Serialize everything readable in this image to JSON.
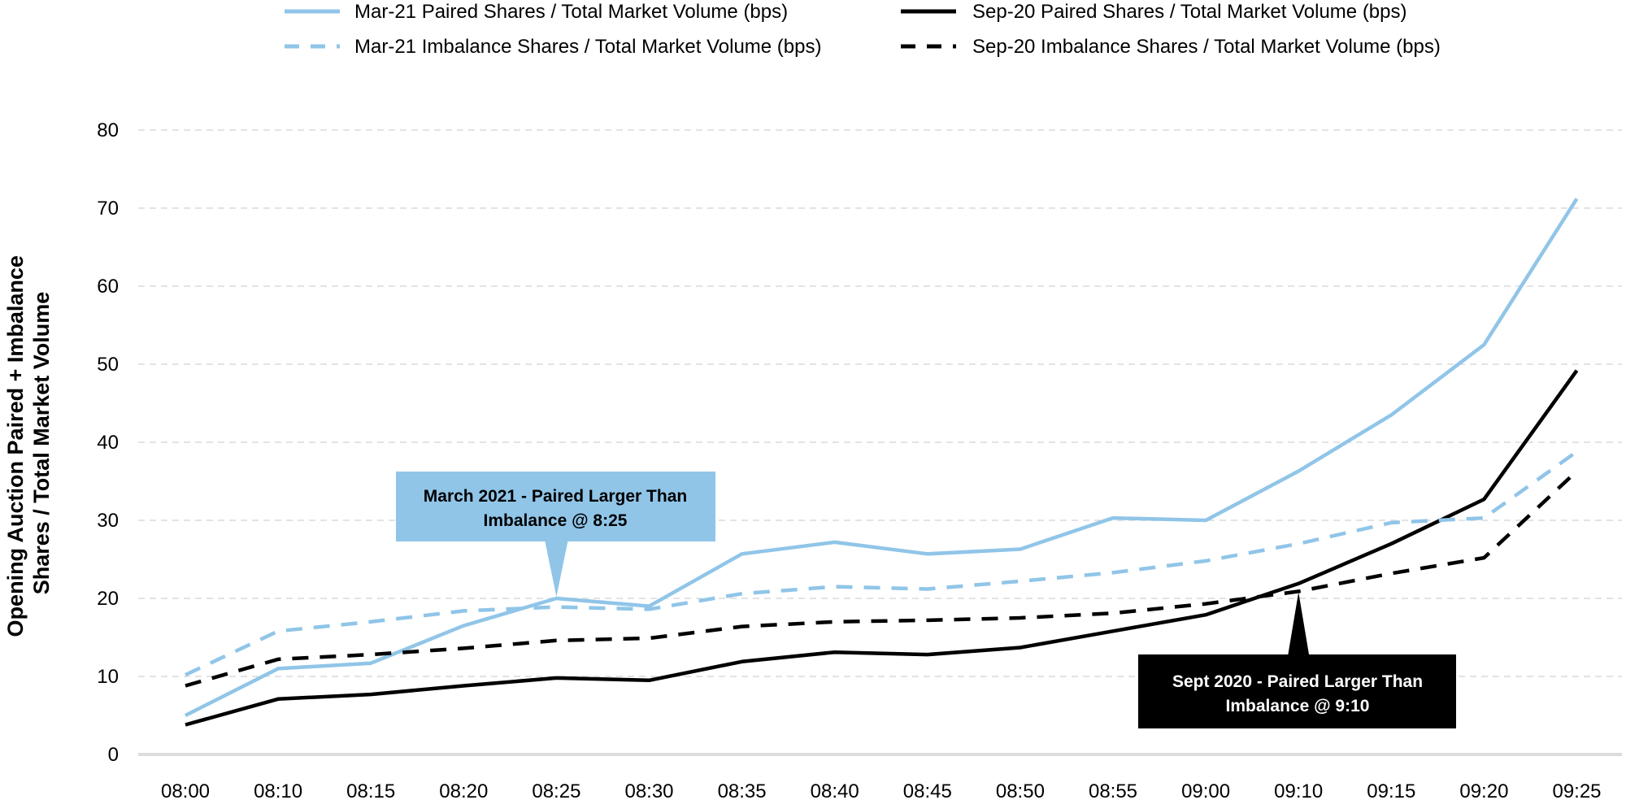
{
  "chart_data": {
    "type": "line",
    "title": "",
    "xlabel": "",
    "ylabel_lines": [
      "Opening Auction Paired + Imbalance",
      "Shares / Total Market Volume"
    ],
    "ylim": [
      0,
      80
    ],
    "yticks": [
      0,
      10,
      20,
      30,
      40,
      50,
      60,
      70,
      80
    ],
    "grid": "horizontal dashed",
    "legend_position": "top",
    "categories": [
      "08:00",
      "08:10",
      "08:15",
      "08:20",
      "08:25",
      "08:30",
      "08:35",
      "08:40",
      "08:45",
      "08:50",
      "08:55",
      "09:00",
      "09:10",
      "09:15",
      "09:20",
      "09:25"
    ],
    "series": [
      {
        "name": "Mar-21 Paired Shares / Total Market Volume (bps)",
        "color": "#90c5e8",
        "dash": "solid",
        "values": [
          5.0,
          11.0,
          11.7,
          16.5,
          20.0,
          19.0,
          25.7,
          27.2,
          25.7,
          26.3,
          30.3,
          30.0,
          36.3,
          43.5,
          52.5,
          71.2
        ]
      },
      {
        "name": "Sep-20 Paired Shares / Total Market Volume (bps)",
        "color": "#000000",
        "dash": "solid",
        "values": [
          3.8,
          7.1,
          7.7,
          8.8,
          9.8,
          9.5,
          11.9,
          13.1,
          12.8,
          13.7,
          15.8,
          17.9,
          21.9,
          27.0,
          32.7,
          49.2
        ]
      },
      {
        "name": "Mar-21 Imbalance Shares / Total Market Volume (bps)",
        "color": "#90c5e8",
        "dash": "dashed",
        "values": [
          10.2,
          15.8,
          17.0,
          18.4,
          18.9,
          18.6,
          20.6,
          21.5,
          21.2,
          22.2,
          23.3,
          24.8,
          27.0,
          29.7,
          30.3,
          38.8
        ]
      },
      {
        "name": "Sep-20 Imbalance Shares / Total Market Volume (bps)",
        "color": "#000000",
        "dash": "dashed",
        "values": [
          8.8,
          12.2,
          12.8,
          13.6,
          14.6,
          14.9,
          16.4,
          17.0,
          17.2,
          17.5,
          18.1,
          19.3,
          20.9,
          23.2,
          25.2,
          36.3
        ]
      }
    ],
    "annotations": [
      {
        "text_lines": [
          "March 2021 - Paired Larger Than",
          "Imbalance @ 8:25"
        ],
        "points_to": {
          "x": "08:25",
          "y": 20.0
        },
        "style": "blue-box"
      },
      {
        "text_lines": [
          "Sept 2020 - Paired Larger Than",
          "Imbalance @ 9:10"
        ],
        "points_to": {
          "x": "09:10",
          "y": 21.0
        },
        "style": "black-box"
      }
    ]
  }
}
